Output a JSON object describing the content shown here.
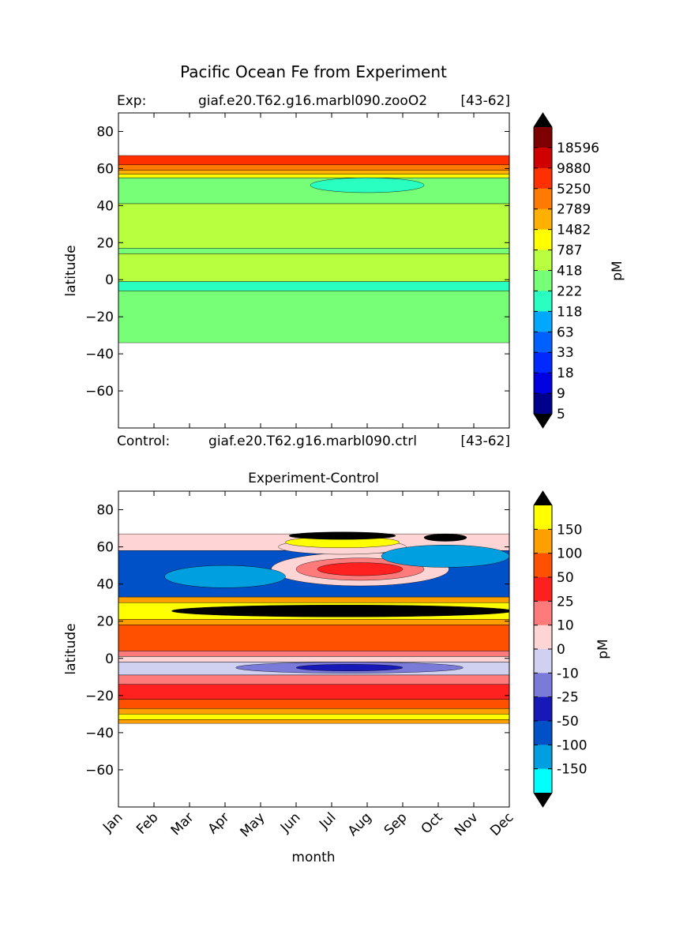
{
  "figure_title": "Pacific Ocean Fe from Experiment",
  "top": {
    "exp_label": "Exp:",
    "exp_case": "giaf.e20.T62.g16.marbl090.zooO2",
    "exp_years": "[43-62]",
    "ctrl_label": "Control:",
    "ctrl_case": "giaf.e20.T62.g16.marbl090.ctrl",
    "ctrl_years": "[43-62]"
  },
  "bottom": {
    "title": "Experiment-Control"
  },
  "chart_data": [
    {
      "type": "contour",
      "ylabel": "latitude",
      "ylim": [
        -80,
        90
      ],
      "yticks": [
        80,
        60,
        40,
        20,
        0,
        -20,
        -40,
        -60
      ],
      "x_categories": [
        "Jan",
        "Feb",
        "Mar",
        "Apr",
        "May",
        "Jun",
        "Jul",
        "Aug",
        "Sep",
        "Oct",
        "Nov",
        "Dec"
      ],
      "colorbar": {
        "label": "pM",
        "tick_labels": [
          "18596",
          "9880",
          "5250",
          "2789",
          "1482",
          "787",
          "418",
          "222",
          "118",
          "63",
          "33",
          "18",
          "9",
          "5"
        ],
        "colors": [
          "#7f0000",
          "#d00000",
          "#ff3000",
          "#ff7a00",
          "#ffb000",
          "#ffff00",
          "#b8ff40",
          "#78ff78",
          "#28ffc0",
          "#00a8ff",
          "#0060ff",
          "#0028ff",
          "#0000e0",
          "#00008c"
        ],
        "extend": "both"
      },
      "bands": [
        {
          "lat": [
            62,
            67
          ],
          "color": "#ff3000"
        },
        {
          "lat": [
            59,
            62
          ],
          "color": "#ff7a00"
        },
        {
          "lat": [
            57,
            59
          ],
          "color": "#ffb000"
        },
        {
          "lat": [
            55,
            57
          ],
          "color": "#ffff00"
        },
        {
          "lat": [
            41,
            55
          ],
          "color": "#78ff78"
        },
        {
          "lat": [
            17,
            41
          ],
          "color": "#b8ff40"
        },
        {
          "lat": [
            14,
            17
          ],
          "color": "#78ff78"
        },
        {
          "lat": [
            -1,
            14
          ],
          "color": "#b8ff40"
        },
        {
          "lat": [
            -6,
            -1
          ],
          "color": "#28ffc0"
        },
        {
          "lat": [
            -34,
            -6
          ],
          "color": "#78ff78"
        }
      ],
      "patches": [
        {
          "month": 7.0,
          "lat": 51,
          "rx": 1.6,
          "ry": 4,
          "color": "#28ffc0"
        }
      ]
    },
    {
      "type": "contour",
      "xlabel": "month",
      "ylabel": "latitude",
      "ylim": [
        -80,
        90
      ],
      "yticks": [
        80,
        60,
        40,
        20,
        0,
        -20,
        -40,
        -60
      ],
      "x_categories": [
        "Jan",
        "Feb",
        "Mar",
        "Apr",
        "May",
        "Jun",
        "Jul",
        "Aug",
        "Sep",
        "Oct",
        "Nov",
        "Dec"
      ],
      "colorbar": {
        "label": "pM",
        "tick_labels": [
          "150",
          "100",
          "50",
          "25",
          "10",
          "0",
          "-10",
          "-25",
          "-50",
          "-100",
          "-150"
        ],
        "colors": [
          "#ffff00",
          "#ffa000",
          "#ff5000",
          "#ff2020",
          "#ff7a7a",
          "#ffd4d4",
          "#d0d0f0",
          "#7a7ad8",
          "#1818b8",
          "#0050c8",
          "#00a0e0",
          "#00ffff"
        ],
        "extend": "both"
      },
      "bands": [
        {
          "lat": [
            58,
            67
          ],
          "color": "#ffd4d4"
        },
        {
          "lat": [
            33,
            58
          ],
          "color": "#0050c8"
        },
        {
          "lat": [
            30,
            33
          ],
          "color": "#ffa000"
        },
        {
          "lat": [
            21,
            30
          ],
          "color": "#ffff00"
        },
        {
          "lat": [
            18,
            21
          ],
          "color": "#ffa000"
        },
        {
          "lat": [
            4,
            18
          ],
          "color": "#ff5000"
        },
        {
          "lat": [
            1,
            4
          ],
          "color": "#ff7a7a"
        },
        {
          "lat": [
            -2,
            1
          ],
          "color": "#ffd4d4"
        },
        {
          "lat": [
            -9,
            -2
          ],
          "color": "#d0d0f0"
        },
        {
          "lat": [
            -14,
            -9
          ],
          "color": "#ff7a7a"
        },
        {
          "lat": [
            -22,
            -14
          ],
          "color": "#ff2020"
        },
        {
          "lat": [
            -27,
            -22
          ],
          "color": "#ff5000"
        },
        {
          "lat": [
            -30,
            -27
          ],
          "color": "#ffa000"
        },
        {
          "lat": [
            -33,
            -30
          ],
          "color": "#ffff00"
        },
        {
          "lat": [
            -35,
            -33
          ],
          "color": "#ffa000"
        }
      ],
      "patches": [
        {
          "month": 6.8,
          "lat": 48,
          "rx": 2.5,
          "ry": 9,
          "color": "#ffd4d4"
        },
        {
          "month": 6.8,
          "lat": 48,
          "rx": 1.8,
          "ry": 6,
          "color": "#ff7a7a"
        },
        {
          "month": 6.8,
          "lat": 48,
          "rx": 1.2,
          "ry": 3.5,
          "color": "#ff2020"
        },
        {
          "month": 3.0,
          "lat": 44,
          "rx": 1.7,
          "ry": 6,
          "color": "#00a0e0"
        },
        {
          "month": 6.3,
          "lat": 25.5,
          "rx": 4.8,
          "ry": 3.2,
          "color": "#000000"
        },
        {
          "month": 6.3,
          "lat": 60,
          "rx": 1.8,
          "ry": 4,
          "color": "#ffd4d4"
        },
        {
          "month": 6.3,
          "lat": 62.5,
          "rx": 1.6,
          "ry": 3,
          "color": "#ffff00"
        },
        {
          "month": 6.3,
          "lat": 66,
          "rx": 1.5,
          "ry": 2,
          "color": "#000000"
        },
        {
          "month": 9.2,
          "lat": 55,
          "rx": 1.8,
          "ry": 6,
          "color": "#00a0e0"
        },
        {
          "month": 9.2,
          "lat": 65,
          "rx": 0.6,
          "ry": 2,
          "color": "#000000"
        },
        {
          "month": 6.5,
          "lat": -5,
          "rx": 3.2,
          "ry": 3,
          "color": "#7a7ad8"
        },
        {
          "month": 6.5,
          "lat": -5,
          "rx": 1.5,
          "ry": 1.8,
          "color": "#1818b8"
        }
      ]
    }
  ]
}
